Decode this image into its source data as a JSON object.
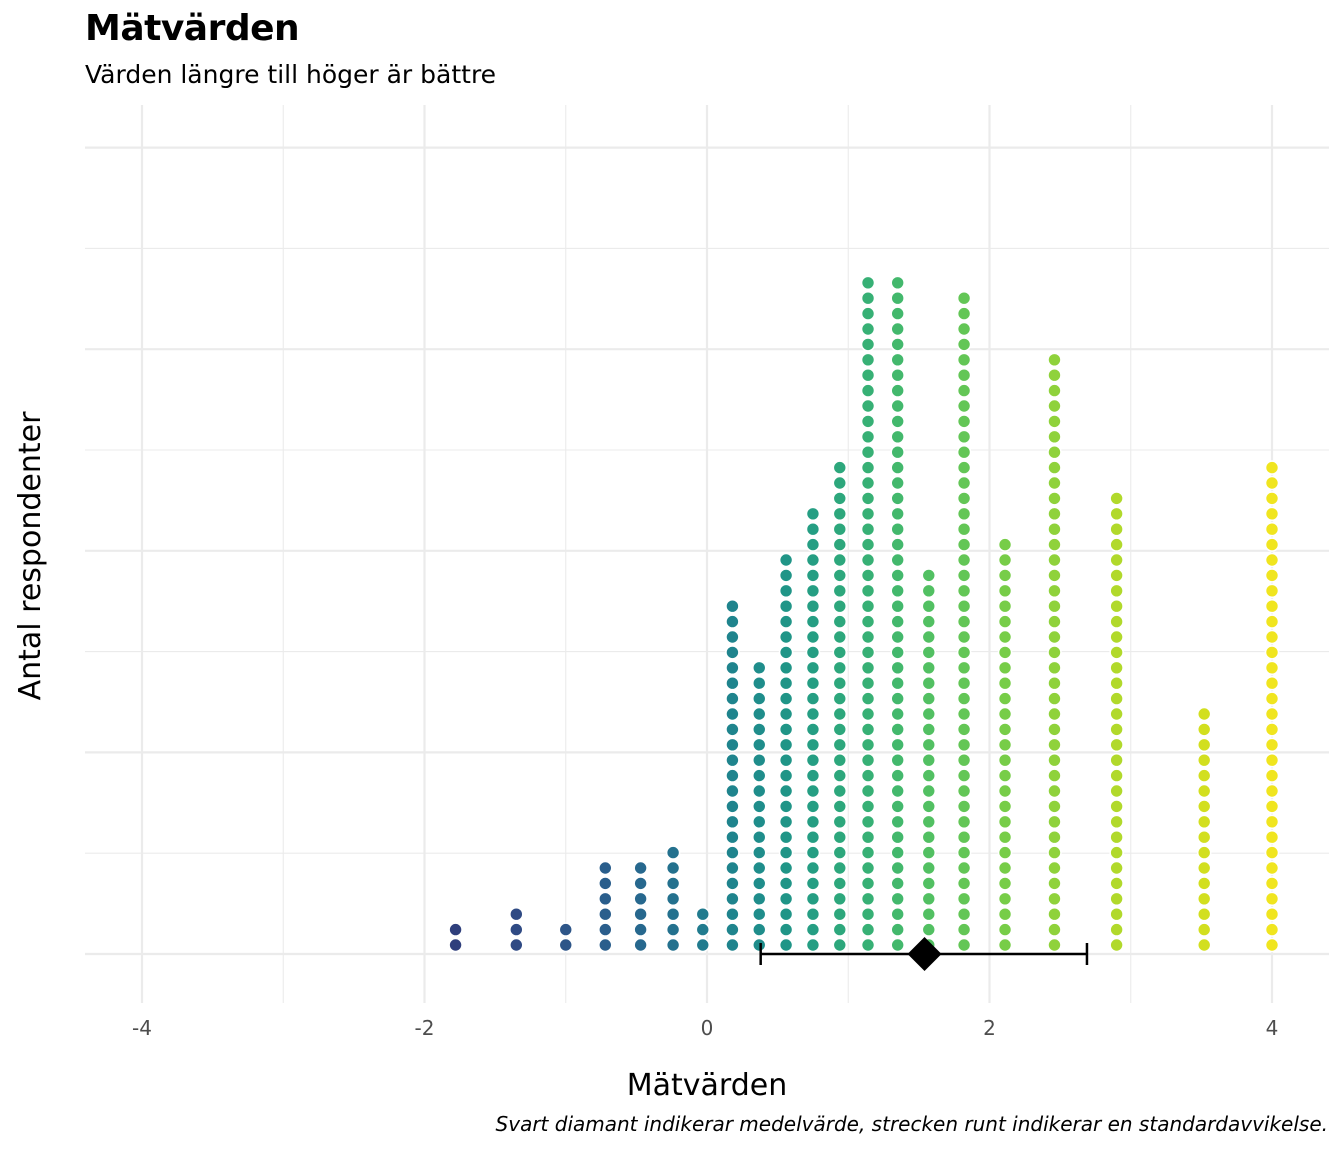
{
  "chart_data": {
    "type": "scatter",
    "subtype": "dot-histogram",
    "title": "Mätvärden",
    "subtitle": "Värden längre till höger är bättre",
    "xlabel": "Mätvärden",
    "ylabel": "Antal respondenter",
    "caption": "Svart diamant indikerar medelvärde, strecken runt indikerar en standardavvikelse.",
    "xlim": [
      -4.4,
      4.4
    ],
    "xticks": [
      -4,
      -2,
      0,
      2,
      4
    ],
    "xtick_labels": [
      "-4",
      "-2",
      "0",
      "2",
      "4"
    ],
    "y_tick_labels_shown": false,
    "grid": true,
    "color_scale": "viridis",
    "dot_columns": [
      {
        "x": -1.78,
        "count": 2,
        "color": "#2f3f7c"
      },
      {
        "x": -1.35,
        "count": 3,
        "color": "#2f4a84"
      },
      {
        "x": -1.0,
        "count": 2,
        "color": "#2d5588"
      },
      {
        "x": -0.72,
        "count": 6,
        "color": "#2a5e8c"
      },
      {
        "x": -0.47,
        "count": 6,
        "color": "#27688e"
      },
      {
        "x": -0.24,
        "count": 7,
        "color": "#24718e"
      },
      {
        "x": -0.03,
        "count": 3,
        "color": "#217b8e"
      },
      {
        "x": 0.18,
        "count": 23,
        "color": "#1f848d"
      },
      {
        "x": 0.37,
        "count": 19,
        "color": "#1f8d8b"
      },
      {
        "x": 0.56,
        "count": 26,
        "color": "#209587"
      },
      {
        "x": 0.75,
        "count": 29,
        "color": "#259e83"
      },
      {
        "x": 0.94,
        "count": 32,
        "color": "#2da77c"
      },
      {
        "x": 1.14,
        "count": 44,
        "color": "#37b075"
      },
      {
        "x": 1.35,
        "count": 44,
        "color": "#43b86c"
      },
      {
        "x": 1.57,
        "count": 25,
        "color": "#52c062"
      },
      {
        "x": 1.82,
        "count": 43,
        "color": "#63c656"
      },
      {
        "x": 2.11,
        "count": 27,
        "color": "#77cd48"
      },
      {
        "x": 2.46,
        "count": 39,
        "color": "#8fd23b"
      },
      {
        "x": 2.9,
        "count": 30,
        "color": "#b1d92b"
      },
      {
        "x": 3.52,
        "count": 16,
        "color": "#d2df1f"
      },
      {
        "x": 4.0,
        "count": 32,
        "color": "#f0e51f"
      }
    ],
    "mean": 1.54,
    "sd_interval": [
      0.38,
      2.69
    ]
  }
}
